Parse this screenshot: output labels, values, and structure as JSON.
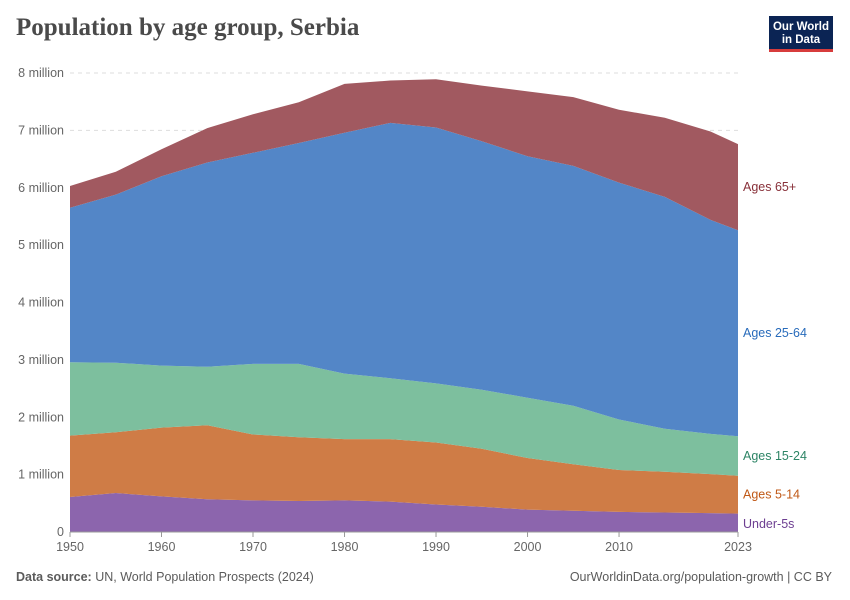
{
  "title": "Population by age group, Serbia",
  "logo": {
    "line1": "Our World",
    "line2": "in Data"
  },
  "footer": {
    "source_label": "Data source:",
    "source_text": "UN, World Population Prospects (2024)",
    "url": "OurWorldinData.org/population-growth | CC BY"
  },
  "chart_data": {
    "type": "area",
    "stacked": true,
    "x": [
      1950,
      1955,
      1960,
      1965,
      1970,
      1975,
      1980,
      1985,
      1990,
      1995,
      2000,
      2005,
      2010,
      2015,
      2020,
      2023
    ],
    "x_ticks": [
      1950,
      1960,
      1970,
      1980,
      1990,
      2000,
      2010,
      2023
    ],
    "ylim": [
      0,
      8000000
    ],
    "y_ticks": [
      {
        "value": 0,
        "label": "0"
      },
      {
        "value": 1000000,
        "label": "1 million"
      },
      {
        "value": 2000000,
        "label": "2 million"
      },
      {
        "value": 3000000,
        "label": "3 million"
      },
      {
        "value": 4000000,
        "label": "4 million"
      },
      {
        "value": 5000000,
        "label": "5 million"
      },
      {
        "value": 6000000,
        "label": "6 million"
      },
      {
        "value": 7000000,
        "label": "7 million"
      },
      {
        "value": 8000000,
        "label": "8 million"
      }
    ],
    "grid": true,
    "legend_placement": "right (inline labels)",
    "series": [
      {
        "name": "Under-5s",
        "color": "#8c65ad",
        "label_color": "#6d3e91",
        "values": [
          610000,
          680000,
          620000,
          570000,
          550000,
          540000,
          550000,
          530000,
          480000,
          440000,
          390000,
          370000,
          350000,
          340000,
          330000,
          320000
        ]
      },
      {
        "name": "Ages 5-14",
        "color": "#cf7c46",
        "label_color": "#c05917",
        "values": [
          1070000,
          1060000,
          1200000,
          1290000,
          1150000,
          1110000,
          1070000,
          1090000,
          1080000,
          1010000,
          900000,
          810000,
          730000,
          710000,
          680000,
          660000
        ]
      },
      {
        "name": "Ages 15-24",
        "color": "#7dbf9e",
        "label_color": "#2c8465",
        "values": [
          1280000,
          1210000,
          1080000,
          1020000,
          1230000,
          1280000,
          1140000,
          1060000,
          1030000,
          1030000,
          1050000,
          1020000,
          880000,
          750000,
          700000,
          690000
        ]
      },
      {
        "name": "Ages 25-64",
        "color": "#5386c7",
        "label_color": "#286bbb",
        "values": [
          2690000,
          2930000,
          3300000,
          3560000,
          3680000,
          3850000,
          4200000,
          4450000,
          4460000,
          4330000,
          4210000,
          4180000,
          4130000,
          4040000,
          3730000,
          3590000
        ]
      },
      {
        "name": "Ages 65+",
        "color": "#a15960",
        "label_color": "#883039",
        "values": [
          380000,
          400000,
          470000,
          600000,
          670000,
          710000,
          850000,
          740000,
          840000,
          970000,
          1130000,
          1200000,
          1270000,
          1380000,
          1540000,
          1500000
        ]
      }
    ]
  }
}
